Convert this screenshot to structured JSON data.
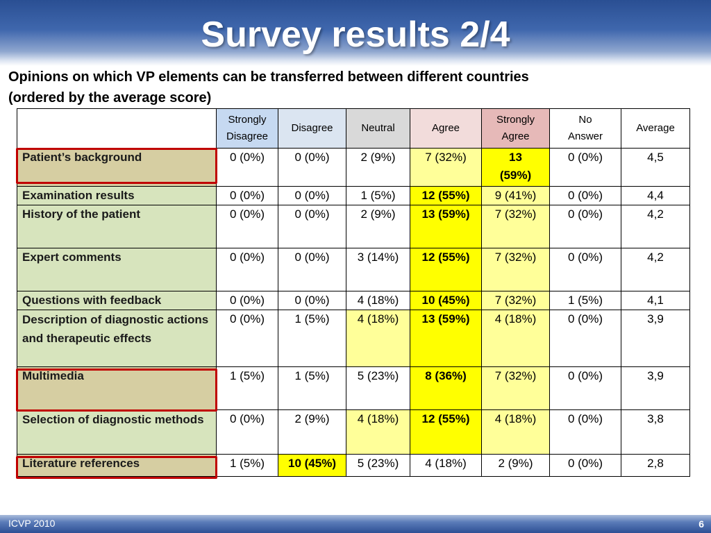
{
  "slide": {
    "title": "Survey results 2/4",
    "subtitle_line1": "Opinions on which VP elements can be transferred between different countries",
    "subtitle_line2": "(ordered by the average score)"
  },
  "table": {
    "headers": [
      {
        "line1": "Strongly",
        "line2": "Disagree"
      },
      {
        "line1": "Disagree",
        "line2": ""
      },
      {
        "line1": "Neutral",
        "line2": ""
      },
      {
        "line1": "Agree",
        "line2": ""
      },
      {
        "line1": "Strongly",
        "line2": "Agree"
      },
      {
        "line1": "No",
        "line2": "Answer"
      },
      {
        "line1": "Average",
        "line2": ""
      }
    ],
    "rows": [
      {
        "label": "Patient’s background",
        "cells": [
          "0 (0%)",
          "0 (0%)",
          "2 (9%)",
          "7 (32%)",
          "13 (59%)",
          "0 (0%)",
          "4,5"
        ]
      },
      {
        "label": "Examination results",
        "cells": [
          "0 (0%)",
          "0 (0%)",
          "1 (5%)",
          "12 (55%)",
          "9 (41%)",
          "0 (0%)",
          "4,4"
        ]
      },
      {
        "label": "History of the patient",
        "cells": [
          "0 (0%)",
          "0 (0%)",
          "2 (9%)",
          "13 (59%)",
          "7 (32%)",
          "0 (0%)",
          "4,2"
        ]
      },
      {
        "label": "Expert comments",
        "cells": [
          "0 (0%)",
          "0 (0%)",
          "3 (14%)",
          "12 (55%)",
          "7 (32%)",
          "0 (0%)",
          "4,2"
        ]
      },
      {
        "label": "Questions with feedback",
        "cells": [
          "0 (0%)",
          "0 (0%)",
          "4 (18%)",
          "10 (45%)",
          "7 (32%)",
          "1 (5%)",
          "4,1"
        ]
      },
      {
        "label": "Description of diagnostic actions and therapeutic effects",
        "cells": [
          "0 (0%)",
          "1 (5%)",
          "4 (18%)",
          "13 (59%)",
          "4 (18%)",
          "0 (0%)",
          "3,9"
        ]
      },
      {
        "label": "Multimedia",
        "cells": [
          "1 (5%)",
          "1 (5%)",
          "5 (23%)",
          "8 (36%)",
          "7 (32%)",
          "0 (0%)",
          "3,9"
        ]
      },
      {
        "label": "Selection of diagnostic methods",
        "cells": [
          "0 (0%)",
          "2 (9%)",
          "4 (18%)",
          "12 (55%)",
          "4 (18%)",
          "0 (0%)",
          "3,8"
        ]
      },
      {
        "label": "Literature references",
        "cells": [
          "1 (5%)",
          "10 (45%)",
          "5 (23%)",
          "4 (18%)",
          "2 (9%)",
          "0 (0%)",
          "2,8"
        ]
      }
    ]
  },
  "colors": {
    "header_strongly_disagree": "#c6d9f1",
    "header_disagree": "#dbe5f1",
    "header_neutral": "#d9d9d9",
    "header_agree": "#f2dcdb",
    "header_strongly_agree": "#e6b9b8",
    "label_green": "#d7e4bd",
    "label_highlighted": "#d6cea2",
    "cell_light_yellow": "#ffff99",
    "cell_bright_yellow": "#ffff00",
    "highlight_box": "#c00000"
  },
  "footer": {
    "left": "ICVP 2010",
    "page_number": "6"
  }
}
